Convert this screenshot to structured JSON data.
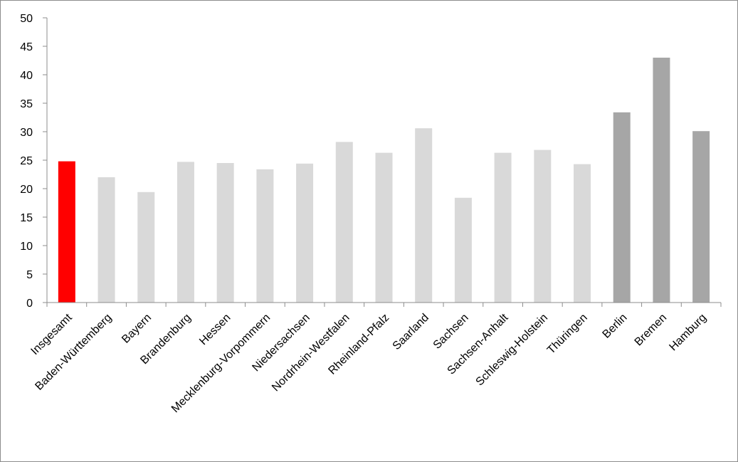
{
  "chart_data": {
    "type": "bar",
    "title": "",
    "xlabel": "",
    "ylabel": "",
    "ylim": [
      0,
      50
    ],
    "yticks": [
      0,
      5,
      10,
      15,
      20,
      25,
      30,
      35,
      40,
      45,
      50
    ],
    "grid": false,
    "legend": "none",
    "categories": [
      "Insgesamt",
      "Baden-Württemberg",
      "Bayern",
      "Brandenburg",
      "Hessen",
      "Mecklenburg-Vorpommern",
      "Niedersachsen",
      "Nordrhein-Westfalen",
      "Rheinland-Pfalz",
      "Saarland",
      "Sachsen",
      "Sachsen-Anhalt",
      "Schleswig-Holstein",
      "Thüringen",
      "Berlin",
      "Bremen",
      "Hamburg"
    ],
    "values": [
      24.8,
      22.0,
      19.4,
      24.7,
      24.5,
      23.4,
      24.4,
      28.2,
      26.3,
      30.6,
      18.4,
      26.3,
      26.8,
      24.3,
      33.4,
      43.0,
      30.1
    ],
    "bar_colors": [
      "#ff0000",
      "#d9d9d9",
      "#d9d9d9",
      "#d9d9d9",
      "#d9d9d9",
      "#d9d9d9",
      "#d9d9d9",
      "#d9d9d9",
      "#d9d9d9",
      "#d9d9d9",
      "#d9d9d9",
      "#d9d9d9",
      "#d9d9d9",
      "#d9d9d9",
      "#a6a6a6",
      "#a6a6a6",
      "#a6a6a6"
    ],
    "axis_color": "#8c8c8c"
  }
}
